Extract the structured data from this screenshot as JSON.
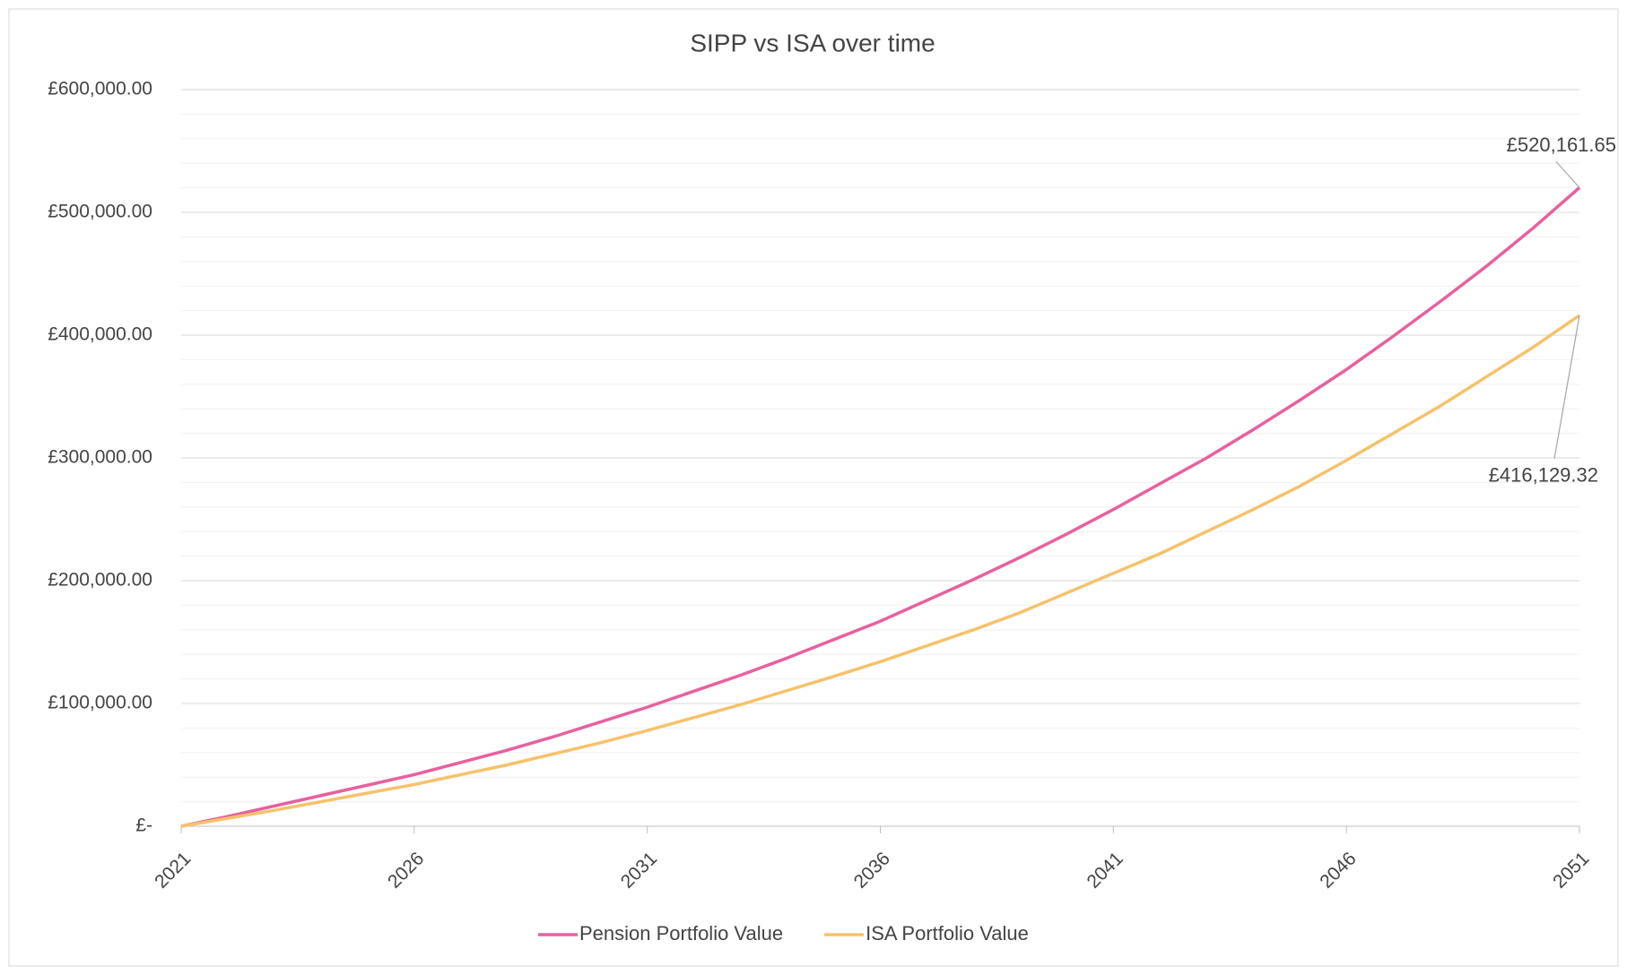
{
  "chart_data": {
    "type": "line",
    "title": "SIPP vs ISA over time",
    "x": [
      2021,
      2022,
      2023,
      2024,
      2025,
      2026,
      2027,
      2028,
      2029,
      2030,
      2031,
      2032,
      2033,
      2034,
      2035,
      2036,
      2037,
      2038,
      2039,
      2040,
      2041,
      2042,
      2043,
      2044,
      2045,
      2046,
      2047,
      2048,
      2049,
      2050,
      2051
    ],
    "series": [
      {
        "name": "Pension Portfolio Value",
        "color": "#e8609f",
        "values": [
          0,
          8000,
          16500,
          25000,
          33500,
          42000,
          52000,
          62000,
          73000,
          85000,
          97000,
          110000,
          123000,
          137000,
          152000,
          167000,
          184000,
          201000,
          219000,
          238000,
          258000,
          279000,
          300000,
          323000,
          347000,
          372000,
          399000,
          427000,
          456000,
          487000,
          520161.65
        ],
        "value_labels": [
          null,
          null,
          null,
          null,
          null,
          null,
          null,
          null,
          null,
          null,
          null,
          null,
          null,
          null,
          null,
          null,
          null,
          null,
          null,
          null,
          null,
          null,
          null,
          null,
          null,
          null,
          null,
          null,
          null,
          null,
          "£520,161.65"
        ]
      },
      {
        "name": "ISA Portfolio Value",
        "color": "#f5c26b",
        "values": [
          0,
          6500,
          13000,
          20000,
          27000,
          34000,
          42000,
          50000,
          59000,
          68000,
          78000,
          88500,
          99000,
          110500,
          122000,
          134000,
          147000,
          160000,
          174000,
          190000,
          206000,
          222000,
          240000,
          258000,
          277000,
          298000,
          320000,
          342000,
          366000,
          390000,
          416129.32
        ],
        "value_labels": [
          null,
          null,
          null,
          null,
          null,
          null,
          null,
          null,
          null,
          null,
          null,
          null,
          null,
          null,
          null,
          null,
          null,
          null,
          null,
          null,
          null,
          null,
          null,
          null,
          null,
          null,
          null,
          null,
          null,
          null,
          "£416,129.32"
        ]
      }
    ],
    "xlim": [
      2021,
      2051
    ],
    "xticks": [
      2021,
      2026,
      2031,
      2036,
      2041,
      2046,
      2051
    ],
    "ylim": [
      0,
      600000
    ],
    "yticks": [
      {
        "value": 0,
        "label": "£-"
      },
      {
        "value": 100000,
        "label": "£100,000.00"
      },
      {
        "value": 200000,
        "label": "£200,000.00"
      },
      {
        "value": 300000,
        "label": "£300,000.00"
      },
      {
        "value": 400000,
        "label": "£400,000.00"
      },
      {
        "value": 500000,
        "label": "£500,000.00"
      },
      {
        "value": 600000,
        "label": "£600,000.00"
      }
    ],
    "minor_yticks": [
      20000,
      40000,
      60000,
      80000,
      120000,
      140000,
      160000,
      180000,
      220000,
      240000,
      260000,
      280000,
      320000,
      340000,
      360000,
      380000,
      420000,
      440000,
      460000,
      480000,
      520000,
      540000,
      560000,
      580000
    ],
    "grid": true,
    "legend": "bottom"
  }
}
